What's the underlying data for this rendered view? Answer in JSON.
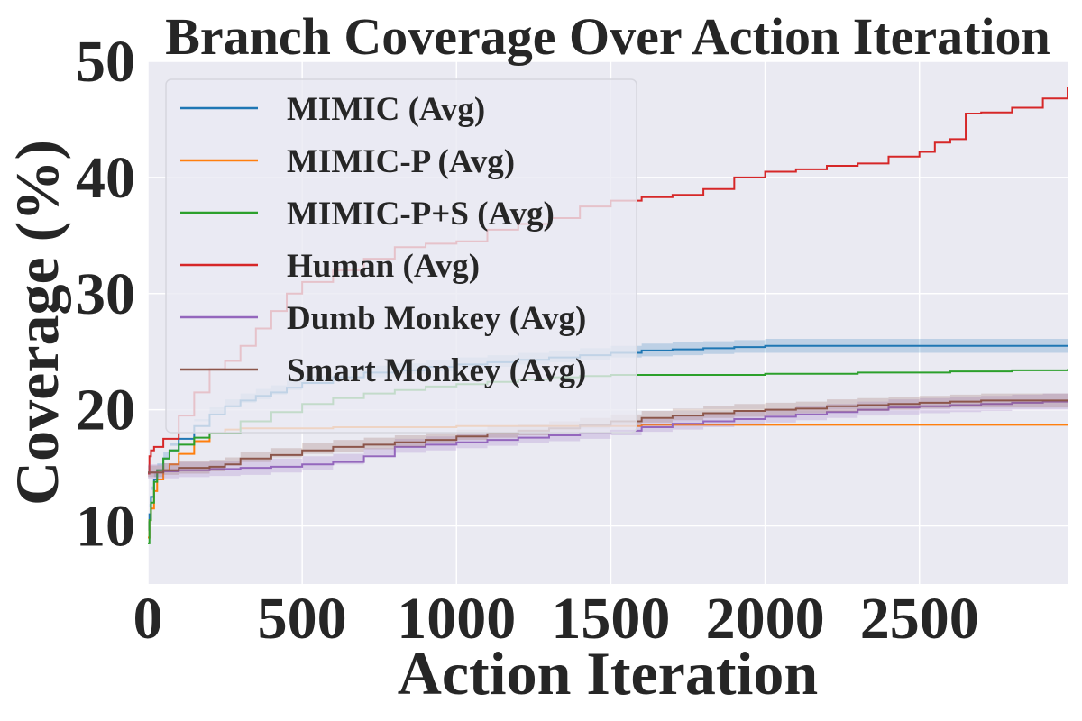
{
  "chart_data": {
    "type": "line",
    "title": "Branch Coverage Over Action Iteration",
    "xlabel": "Action Iteration",
    "ylabel": "Coverage (%)",
    "xlim": [
      0,
      2980
    ],
    "ylim": [
      5,
      50
    ],
    "xticks": [
      0,
      500,
      1000,
      1500,
      2000,
      2500
    ],
    "yticks": [
      10,
      20,
      30,
      40,
      50
    ],
    "grid": true,
    "legend_position": "upper-left",
    "series": [
      {
        "name": "MIMIC (Avg)",
        "color": "#1f77b4",
        "x": [
          0,
          5,
          10,
          20,
          30,
          50,
          70,
          100,
          150,
          200,
          250,
          300,
          350,
          400,
          450,
          500,
          600,
          700,
          800,
          900,
          1000,
          1100,
          1200,
          1300,
          1400,
          1500,
          1600,
          1700,
          1800,
          1900,
          2000,
          2100,
          2200,
          2400,
          2600,
          2800,
          2980
        ],
        "values": [
          9.0,
          11.0,
          12.5,
          14.0,
          14.8,
          15.8,
          16.5,
          17.5,
          18.6,
          19.6,
          20.3,
          20.8,
          21.2,
          21.5,
          21.9,
          22.3,
          22.8,
          23.2,
          23.4,
          23.7,
          23.9,
          24.1,
          24.3,
          24.5,
          24.7,
          24.9,
          25.1,
          25.2,
          25.3,
          25.4,
          25.5,
          25.5,
          25.5,
          25.5,
          25.5,
          25.5,
          25.5
        ],
        "band": 0.6
      },
      {
        "name": "MIMIC-P (Avg)",
        "color": "#ff7f0e",
        "x": [
          0,
          5,
          10,
          20,
          30,
          50,
          70,
          100,
          150,
          200,
          250,
          300,
          400,
          600,
          800,
          1000,
          1200,
          1400,
          1600,
          1800,
          2000,
          2500,
          2980
        ],
        "values": [
          9.0,
          10.5,
          11.5,
          13.0,
          14.0,
          14.8,
          15.3,
          16.2,
          17.3,
          18.0,
          18.3,
          18.4,
          18.4,
          18.5,
          18.5,
          18.6,
          18.6,
          18.6,
          18.7,
          18.7,
          18.7,
          18.7,
          18.7
        ],
        "band": 0
      },
      {
        "name": "MIMIC-P+S (Avg)",
        "color": "#2ca02c",
        "x": [
          0,
          5,
          10,
          20,
          30,
          50,
          70,
          100,
          150,
          200,
          300,
          400,
          500,
          600,
          700,
          800,
          900,
          1000,
          1100,
          1200,
          1300,
          1400,
          1500,
          1700,
          2000,
          2300,
          2600,
          2800,
          2980
        ],
        "values": [
          8.5,
          10.5,
          12.0,
          13.8,
          14.8,
          15.8,
          16.5,
          17.0,
          17.6,
          18.0,
          19.0,
          19.8,
          20.5,
          21.0,
          21.4,
          21.7,
          22.0,
          22.2,
          22.4,
          22.6,
          22.8,
          22.9,
          23.0,
          23.0,
          23.1,
          23.2,
          23.3,
          23.4,
          23.5
        ],
        "band": 0
      },
      {
        "name": "Human (Avg)",
        "color": "#d62728",
        "x": [
          0,
          5,
          10,
          20,
          50,
          100,
          150,
          200,
          250,
          300,
          350,
          400,
          450,
          500,
          600,
          700,
          800,
          900,
          1000,
          1100,
          1200,
          1300,
          1400,
          1500,
          1600,
          1700,
          1800,
          1900,
          2000,
          2100,
          2200,
          2300,
          2400,
          2500,
          2550,
          2600,
          2650,
          2700,
          2800,
          2900,
          2980
        ],
        "values": [
          14.5,
          16.0,
          16.5,
          16.8,
          17.5,
          19.5,
          21.5,
          23.5,
          24.2,
          25.5,
          27.0,
          28.5,
          30.0,
          31.0,
          32.0,
          33.0,
          34.0,
          34.3,
          34.5,
          35.5,
          36.0,
          36.5,
          37.5,
          38.0,
          38.3,
          38.5,
          39.0,
          40.0,
          40.5,
          40.7,
          41.0,
          41.2,
          41.8,
          42.2,
          43.0,
          43.3,
          45.5,
          45.6,
          46.0,
          46.8,
          47.8
        ],
        "band": 0
      },
      {
        "name": "Dumb Monkey (Avg)",
        "color": "#9467bd",
        "x": [
          0,
          50,
          100,
          200,
          300,
          400,
          500,
          600,
          700,
          800,
          900,
          1000,
          1100,
          1200,
          1300,
          1400,
          1500,
          1600,
          1700,
          1800,
          1900,
          2000,
          2100,
          2200,
          2300,
          2400,
          2500,
          2600,
          2700,
          2800,
          2900,
          2980
        ],
        "values": [
          14.6,
          14.7,
          14.8,
          14.9,
          15.0,
          15.1,
          15.3,
          15.5,
          16.0,
          16.8,
          17.0,
          17.2,
          17.4,
          17.6,
          17.8,
          18.0,
          18.2,
          18.5,
          18.8,
          19.0,
          19.2,
          19.4,
          19.6,
          19.8,
          20.0,
          20.2,
          20.3,
          20.4,
          20.5,
          20.6,
          20.7,
          20.7
        ],
        "band": 0.7
      },
      {
        "name": "Smart Monkey (Avg)",
        "color": "#8c564b",
        "x": [
          0,
          50,
          100,
          200,
          250,
          300,
          400,
          500,
          600,
          700,
          800,
          900,
          1000,
          1100,
          1200,
          1300,
          1400,
          1500,
          1600,
          1700,
          1800,
          1900,
          2000,
          2100,
          2200,
          2300,
          2400,
          2500,
          2600,
          2700,
          2800,
          2900,
          2980
        ],
        "values": [
          14.6,
          14.8,
          15.0,
          15.1,
          15.3,
          15.8,
          16.1,
          16.5,
          16.8,
          17.0,
          17.2,
          17.4,
          17.7,
          18.0,
          18.2,
          18.4,
          18.7,
          19.0,
          19.3,
          19.5,
          19.7,
          19.9,
          20.0,
          20.1,
          20.3,
          20.4,
          20.5,
          20.6,
          20.7,
          20.8,
          20.8,
          20.8,
          20.8
        ],
        "band": 0.6
      }
    ]
  }
}
